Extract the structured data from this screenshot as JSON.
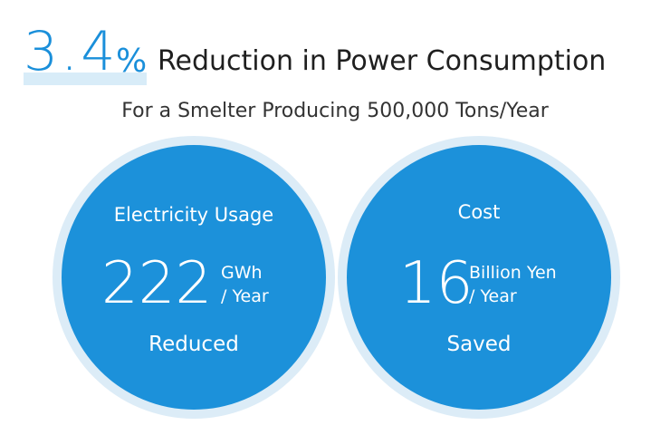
{
  "headline": {
    "number": "3.4",
    "percent": "%",
    "text": "Reduction in Power Consumption"
  },
  "subtitle": "For a Smelter Producing 500,000 Tons/Year",
  "cards": [
    {
      "title": "Electricity Usage",
      "value": "222",
      "unit_line1": "GWh",
      "unit_line2": "/ Year",
      "caption": "Reduced"
    },
    {
      "title": "Cost",
      "value": "16",
      "unit_line1": "Billion Yen",
      "unit_line2": "/ Year",
      "caption": "Saved"
    }
  ],
  "colors": {
    "accent": "#1a8fda",
    "circle_fill": "#1c91da",
    "circle_halo": "#dcecf7",
    "highlight": "#d8ecf8"
  }
}
